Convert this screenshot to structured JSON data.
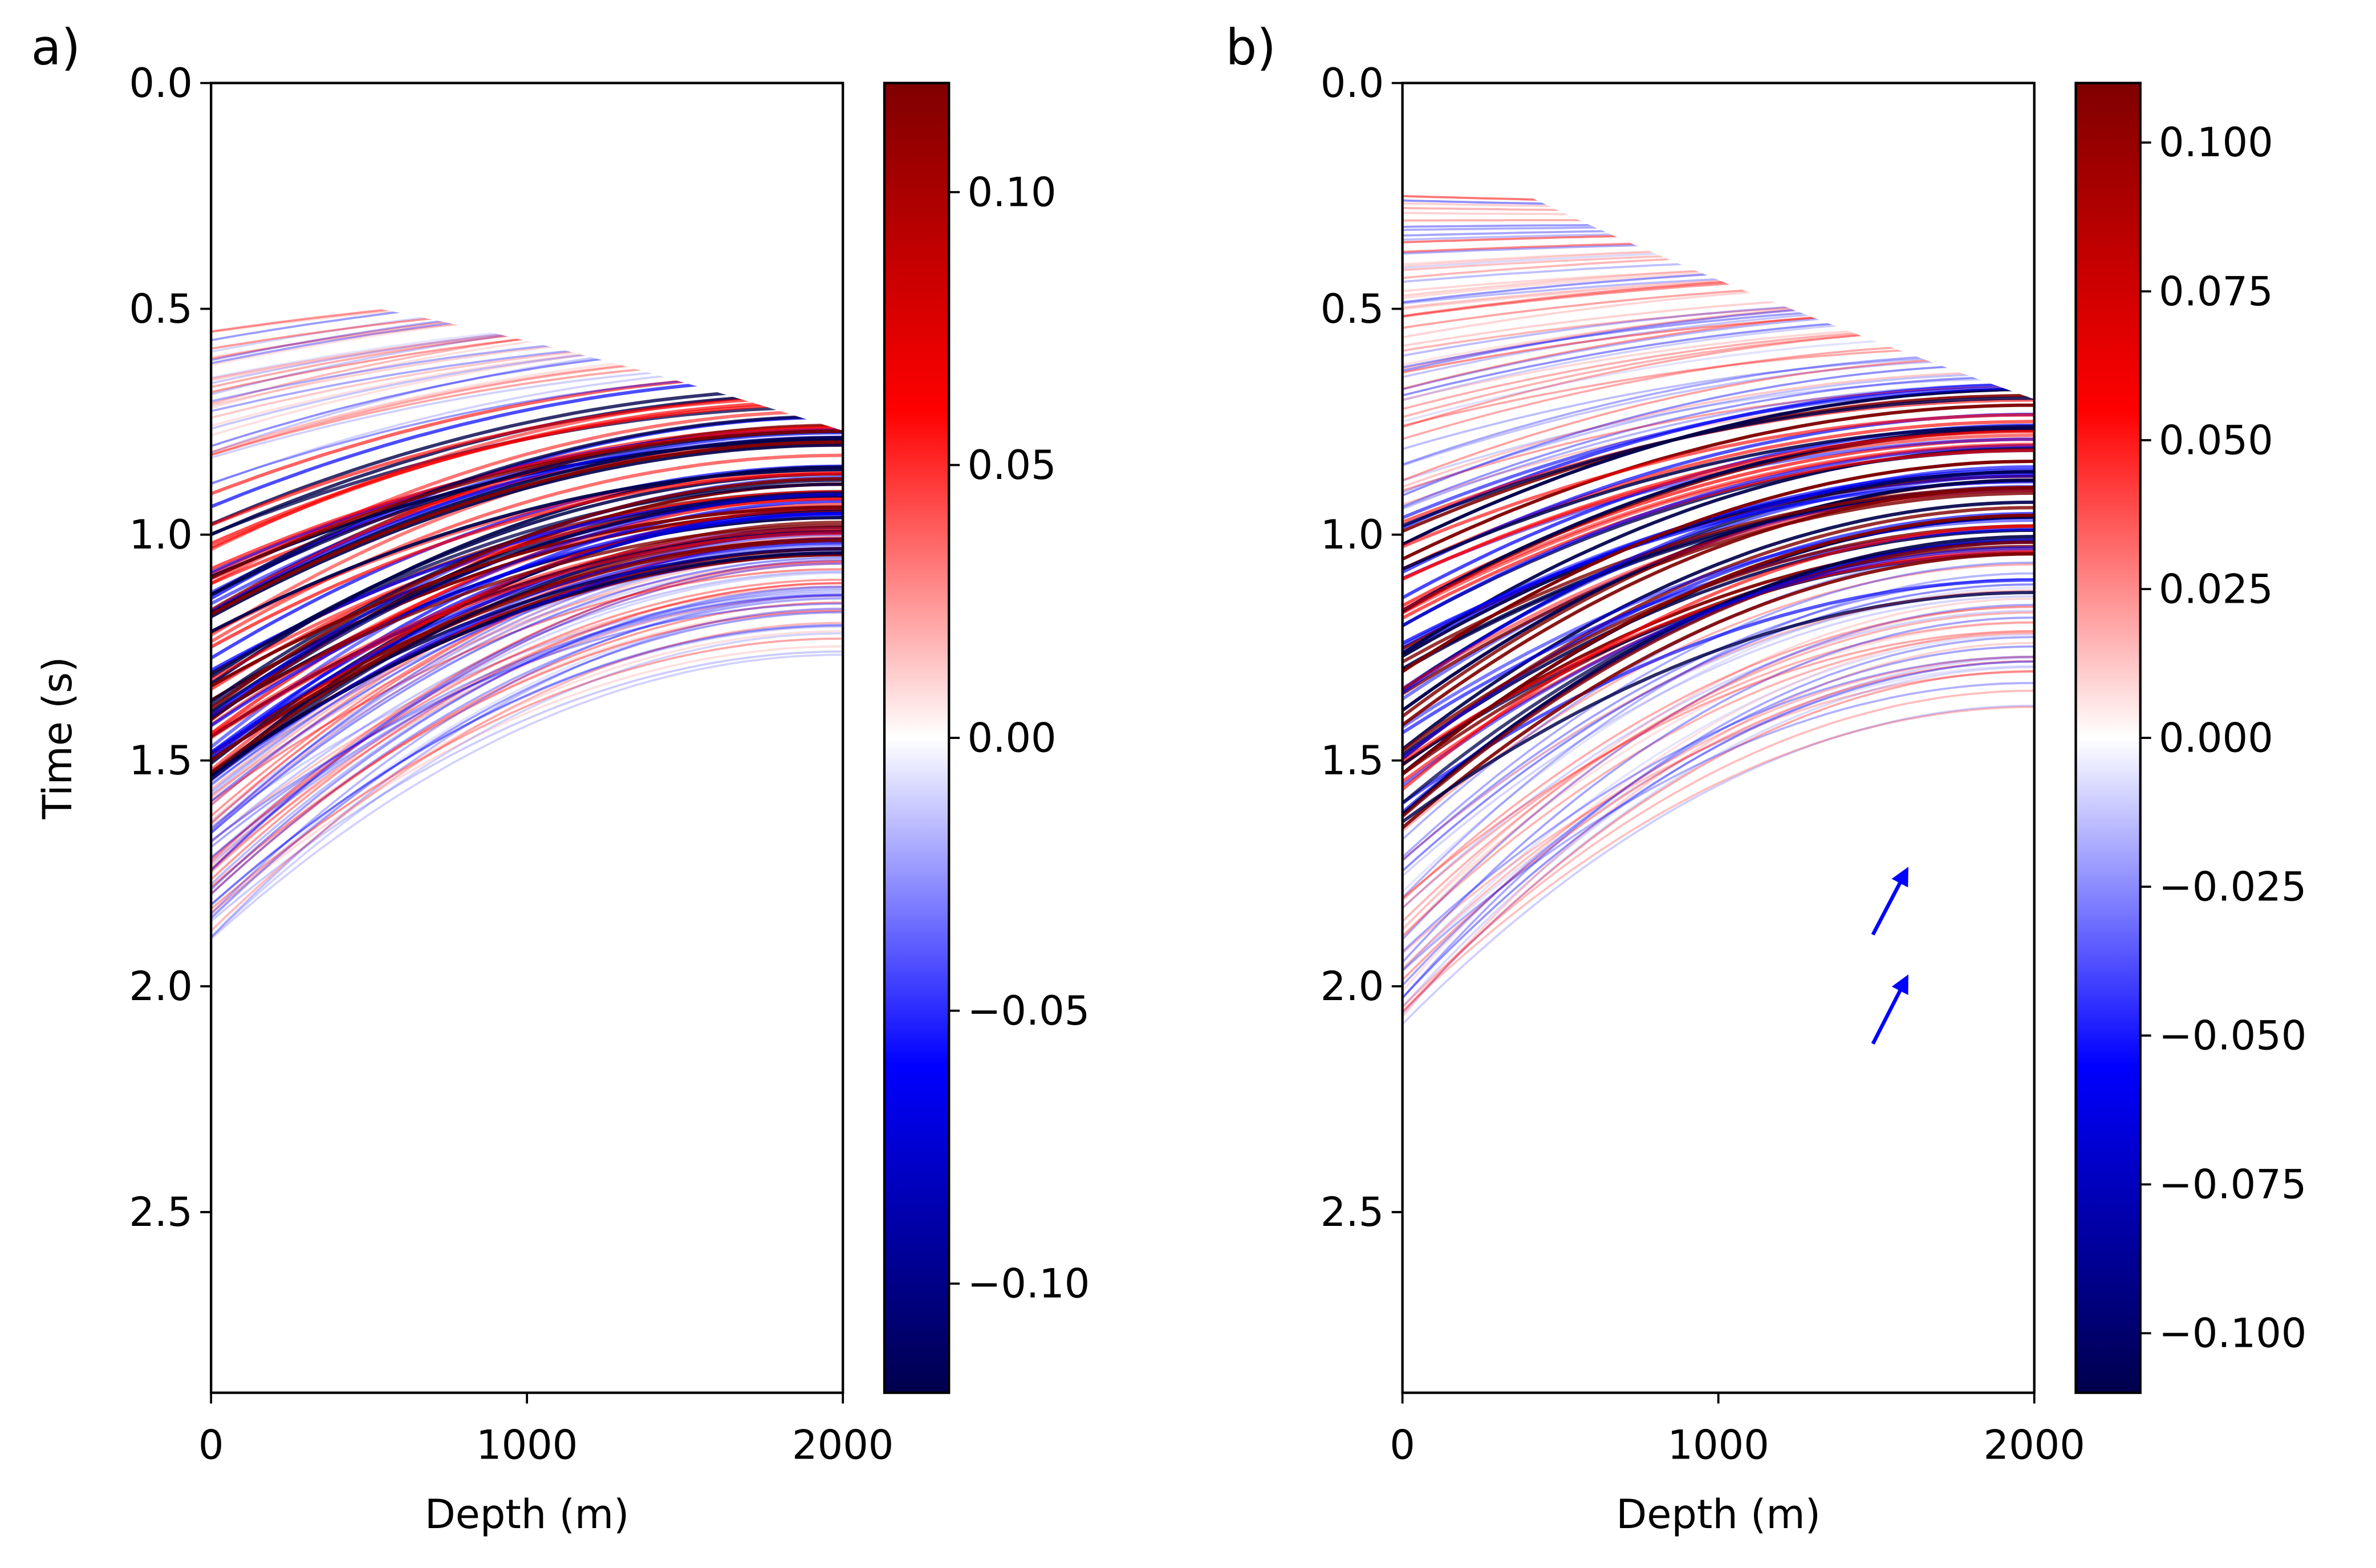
{
  "chart_data": [
    {
      "type": "heatmap",
      "panel_label": "a)",
      "xlabel": "Depth (m)",
      "ylabel": "Time (s)",
      "xlim": [
        0,
        2000
      ],
      "xticks": [
        0,
        1000,
        2000
      ],
      "ylim": [
        0,
        2.9
      ],
      "y_inverted": true,
      "yticks": [
        {
          "value": 0,
          "label": "0.0"
        },
        0.5,
        {
          "value": 1,
          "label": "1.0"
        },
        1.5,
        {
          "value": 2,
          "label": "2.0"
        },
        2.5
      ],
      "colorbar": {
        "clim": [
          -0.12,
          0.12
        ],
        "colors": [
          "#00004c",
          "#0000ff",
          "#ffffff",
          "#ff0000",
          "#7f0000"
        ],
        "ticks": [
          {
            "value": 0.1,
            "label": "0.10"
          },
          0.05,
          {
            "value": 0,
            "label": "0.00"
          },
          {
            "value": -0.05,
            "label": "−0.05"
          },
          {
            "value": -0.1,
            "label": "−0.10"
          }
        ]
      }
    },
    {
      "type": "heatmap",
      "panel_label": "b)",
      "xlabel": "Depth (m)",
      "xlim": [
        0,
        2000
      ],
      "xticks": [
        0,
        1000,
        2000
      ],
      "ylim": [
        0,
        2.9
      ],
      "y_inverted": true,
      "yticks": [
        {
          "value": 0,
          "label": "0.0"
        },
        0.5,
        {
          "value": 1,
          "label": "1.0"
        },
        1.5,
        {
          "value": 2,
          "label": "2.0"
        },
        2.5
      ],
      "colorbar": {
        "clim": [
          -0.11,
          0.11
        ],
        "colors": [
          "#00004c",
          "#0000ff",
          "#ffffff",
          "#ff0000",
          "#7f0000"
        ],
        "ticks": [
          {
            "value": 0.1,
            "label": "0.100"
          },
          {
            "value": 0.075,
            "label": "0.075"
          },
          {
            "value": 0.05,
            "label": "0.050"
          },
          {
            "value": 0.025,
            "label": "0.025"
          },
          {
            "value": 0,
            "label": "0.000"
          },
          {
            "value": -0.025,
            "label": "−0.025"
          },
          {
            "value": -0.05,
            "label": "−0.050"
          },
          {
            "value": -0.075,
            "label": "−0.075"
          },
          {
            "value": -0.1,
            "label": "−0.100"
          }
        ]
      }
    }
  ]
}
